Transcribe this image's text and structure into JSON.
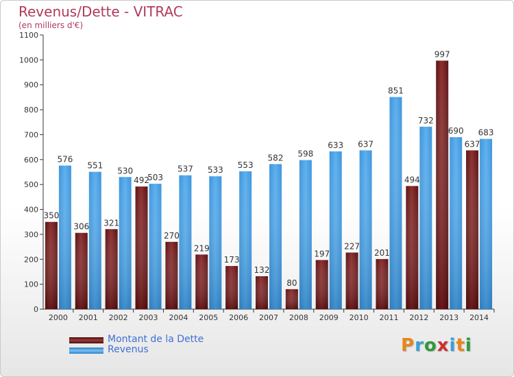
{
  "header": {
    "title": "Revenus/Dette - VITRAC",
    "subtitle": "(en milliers d'€)"
  },
  "legend": {
    "items": [
      {
        "label": "Montant de la Dette",
        "color": "#7a1f1f"
      },
      {
        "label": "Revenus",
        "color": "#4aa3e8"
      }
    ]
  },
  "logo": {
    "text": "Proxiti",
    "colors": [
      "#e8861a",
      "#3aa0d8",
      "#2f9a3a",
      "#cf2f2f",
      "#3aa0d8",
      "#e8861a",
      "#2f9a3a"
    ]
  },
  "chart_data": {
    "type": "bar",
    "title": "Revenus/Dette - VITRAC",
    "subtitle": "(en milliers d'€)",
    "categories": [
      "2000",
      "2001",
      "2002",
      "2003",
      "2004",
      "2005",
      "2006",
      "2007",
      "2008",
      "2009",
      "2010",
      "2011",
      "2012",
      "2013",
      "2014"
    ],
    "series": [
      {
        "name": "Montant de la Dette",
        "color": "#7a1f1f",
        "values": [
          350,
          306,
          321,
          492,
          270,
          219,
          173,
          132,
          80,
          197,
          227,
          201,
          494,
          997,
          637
        ]
      },
      {
        "name": "Revenus",
        "color": "#4aa3e8",
        "values": [
          576,
          551,
          530,
          503,
          537,
          533,
          553,
          582,
          598,
          633,
          637,
          851,
          732,
          690,
          683
        ]
      }
    ],
    "ylim": [
      0,
      1100
    ],
    "yticks": [
      0,
      100,
      200,
      300,
      400,
      500,
      600,
      700,
      800,
      900,
      1000,
      1100
    ],
    "grid": false,
    "legend_position": "bottom-left"
  }
}
